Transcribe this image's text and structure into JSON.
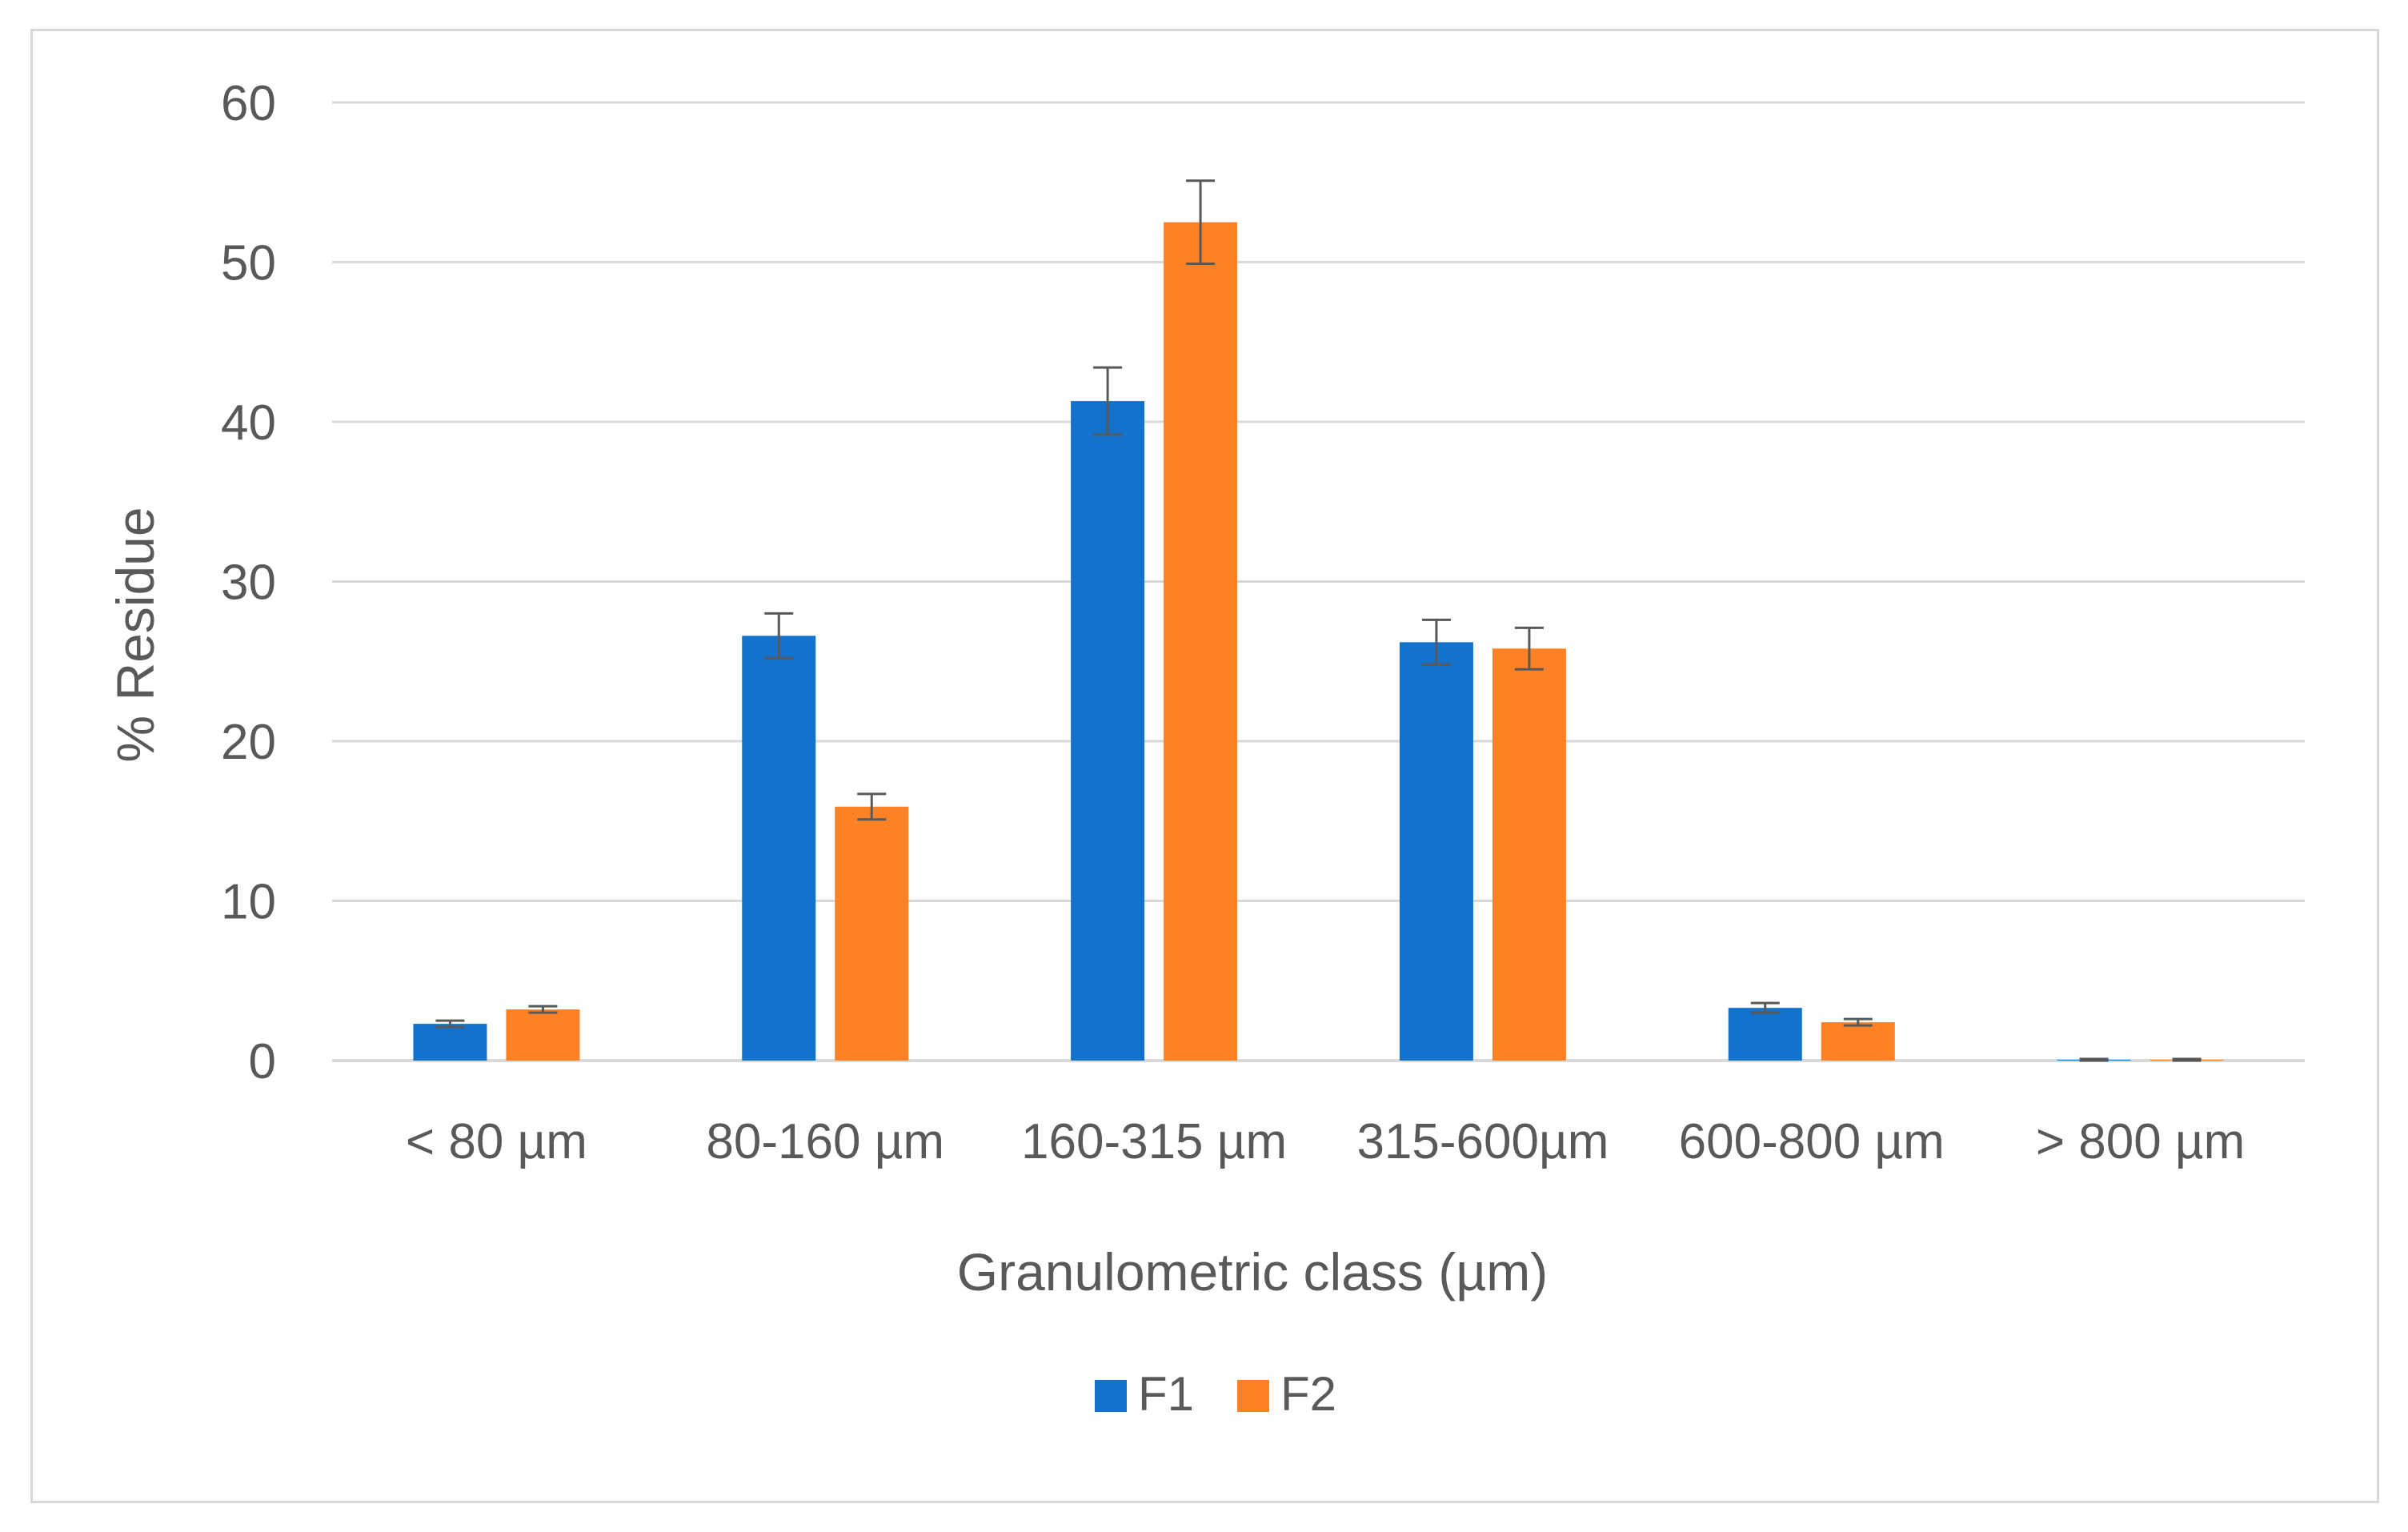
{
  "chart_data": {
    "type": "bar",
    "title": "",
    "xlabel": "Granulometric class (µm)",
    "ylabel": "% Residue",
    "ylim": [
      0,
      60
    ],
    "yticks": [
      0,
      10,
      20,
      30,
      40,
      50,
      60
    ],
    "grid": true,
    "legend_position": "bottom",
    "categories": [
      "< 80 µm",
      "80-160 µm",
      "160-315 µm",
      "315-600µm",
      "600-800 µm",
      "> 800 µm"
    ],
    "series": [
      {
        "name": "F1",
        "color": "#1372cb",
        "values": [
          2.3,
          26.6,
          41.3,
          26.2,
          3.3,
          0.05
        ],
        "errors": [
          0.2,
          1.4,
          2.1,
          1.4,
          0.3,
          0.05
        ]
      },
      {
        "name": "F2",
        "color": "#fe8125",
        "values": [
          3.2,
          15.9,
          52.5,
          25.8,
          2.4,
          0.05
        ],
        "errors": [
          0.2,
          0.8,
          2.6,
          1.3,
          0.2,
          0.05
        ]
      }
    ]
  }
}
